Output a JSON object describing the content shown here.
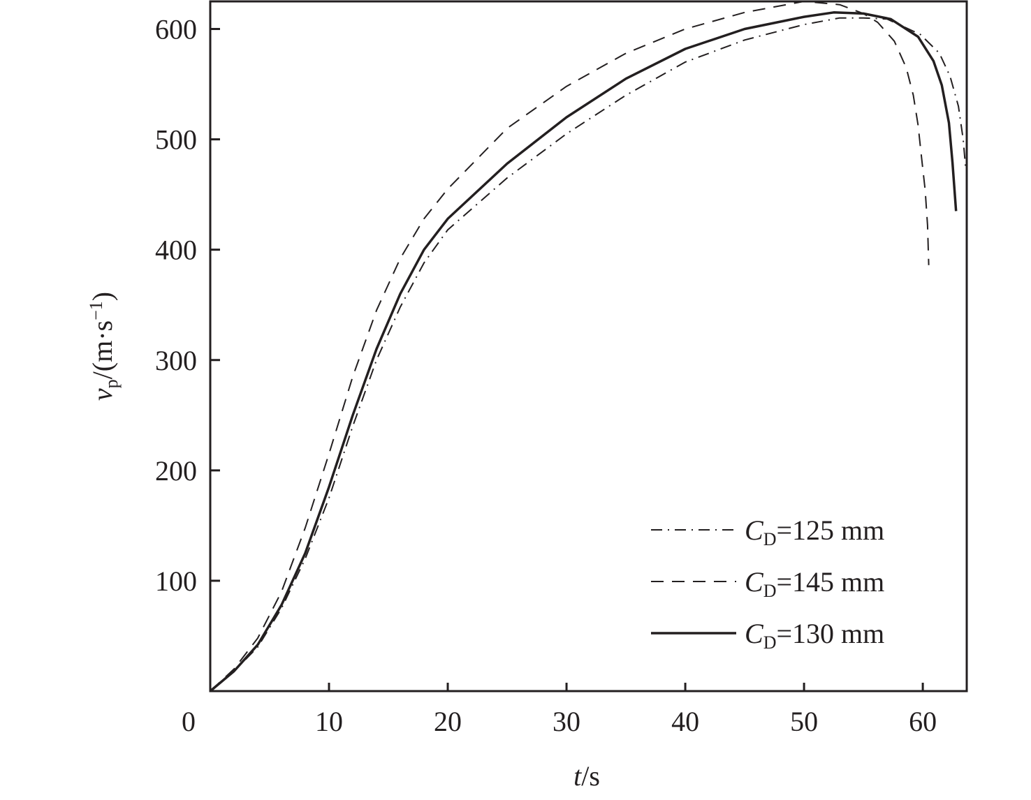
{
  "chart_data": {
    "type": "line",
    "title": "",
    "xlabel": {
      "var": "t",
      "unit": "/s"
    },
    "ylabel": {
      "var": "v",
      "sub": "p",
      "unit": "/(m·s",
      "sup": "−1",
      "close": ")"
    },
    "xlim": [
      0,
      63.7
    ],
    "ylim": [
      0,
      625
    ],
    "xticks": [
      10,
      20,
      30,
      40,
      50,
      60
    ],
    "yticks": [
      100,
      200,
      300,
      400,
      500,
      600
    ],
    "origin_label": "0",
    "grid": false,
    "legend_placement": "bottom-right",
    "series": [
      {
        "name": "=125 mm",
        "prefix": "C",
        "sub": "D",
        "style": "dashdot",
        "x": [
          0,
          2,
          4,
          6,
          8,
          10,
          12,
          14,
          16,
          18,
          20,
          25,
          30,
          35,
          40,
          45,
          50,
          53,
          55,
          57,
          59.8,
          61.4,
          62.3,
          63.0,
          63.4,
          63.6
        ],
        "y": [
          0,
          18,
          40,
          75,
          120,
          175,
          240,
          300,
          348,
          388,
          418,
          465,
          505,
          540,
          570,
          590,
          604,
          610,
          610,
          609,
          595,
          578,
          557,
          530,
          500,
          475
        ]
      },
      {
        "name": "=145 mm",
        "prefix": "C",
        "sub": "D",
        "style": "dashed",
        "x": [
          0,
          2,
          4,
          6,
          8,
          10,
          12,
          14,
          16,
          18,
          20,
          25,
          30,
          35,
          40,
          45,
          50,
          53,
          55,
          56.2,
          57.6,
          58.6,
          59.2,
          59.6,
          59.9,
          60.2,
          60.4,
          60.5
        ],
        "y": [
          0,
          20,
          48,
          90,
          148,
          215,
          285,
          345,
          392,
          428,
          455,
          510,
          548,
          578,
          600,
          615,
          625,
          622,
          614,
          606,
          589,
          565,
          540,
          513,
          483,
          454,
          422,
          386
        ]
      },
      {
        "name": "=130 mm",
        "prefix": "C",
        "sub": "D",
        "style": "solid",
        "x": [
          0,
          2,
          4,
          6,
          8,
          10,
          12,
          14,
          16,
          18,
          20,
          25,
          30,
          35,
          40,
          45,
          50,
          52.5,
          55,
          57.3,
          59.6,
          60.9,
          61.6,
          62.2,
          62.5,
          62.8
        ],
        "y": [
          0,
          18,
          42,
          78,
          125,
          185,
          250,
          310,
          360,
          400,
          428,
          478,
          520,
          555,
          582,
          600,
          611,
          615,
          614,
          609,
          593,
          571,
          549,
          515,
          479,
          435
        ]
      }
    ]
  }
}
